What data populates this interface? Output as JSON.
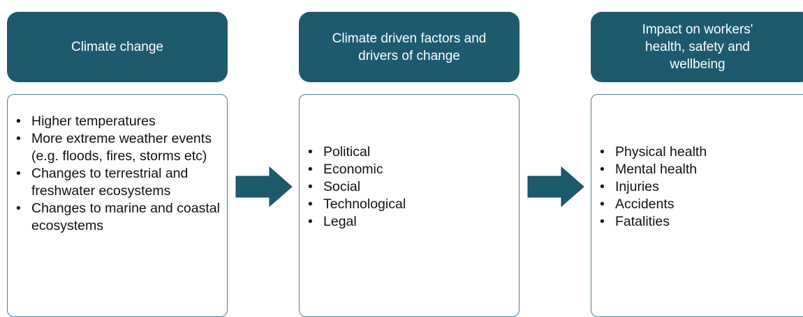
{
  "columns": [
    {
      "title": "Climate change",
      "items": [
        "Higher temperatures",
        "More extreme weather events (e.g. floods, fires, storms etc)",
        "Changes to terrestrial and freshwater ecosystems",
        "Changes to marine and coastal ecosystems"
      ]
    },
    {
      "title": "Climate driven factors and drivers of change",
      "items": [
        "Political",
        "Economic",
        "Social",
        "Technological",
        "Legal"
      ]
    },
    {
      "title": "Impact on workers' health, safety and wellbeing",
      "items": [
        "Physical health",
        "Mental health",
        "Injuries",
        "Accidents",
        "Fatalities"
      ]
    }
  ]
}
